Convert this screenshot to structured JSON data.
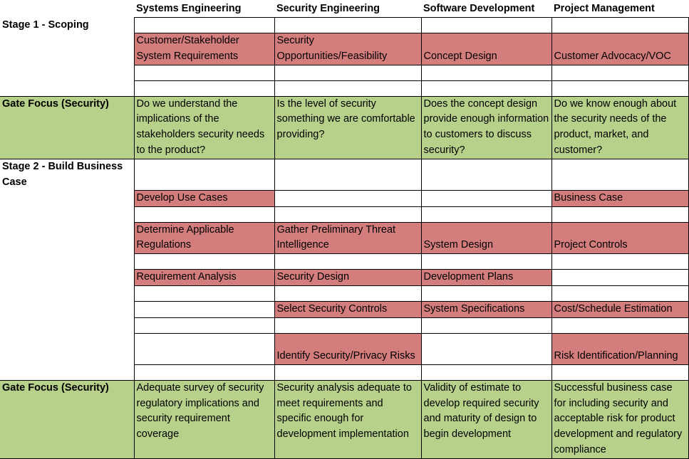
{
  "header": {
    "blank": "",
    "col1": "Systems Engineering",
    "col2": "Security Engineering",
    "col3": "Software Development",
    "col4": "Project Management"
  },
  "stage1": {
    "label": "Stage 1 - Scoping",
    "r1": [
      "Customer/Stakeholder System Requirements",
      "Security Opportunities/Feasibility",
      "Concept Design",
      "Customer Advocacy/VOC"
    ],
    "gate_label": "Gate Focus (Security)",
    "gate": [
      "Do we understand the implications of the stakeholders security needs to the product?",
      "Is the level of security something we are comfortable providing?",
      "Does the concept design provide enough information to customers to discuss security?",
      "Do we know enough about the security needs of the product, market, and customer?"
    ]
  },
  "stage2": {
    "label": "Stage 2 - Build Business Case",
    "r1": [
      "Develop Use Cases",
      "",
      "",
      "Business Case"
    ],
    "r2": [
      "Determine Applicable Regulations",
      "Gather Preliminary Threat Intelligence",
      "System Design",
      "Project Controls"
    ],
    "r3": [
      "Requirement Analysis",
      "Security Design",
      "Development Plans",
      ""
    ],
    "r4": [
      "",
      "Select Security Controls",
      "System Specifications",
      "Cost/Schedule Estimation"
    ],
    "r5": [
      "",
      "Identify Security/Privacy Risks",
      "",
      "Risk Identification/Planning"
    ],
    "gate_label": "Gate Focus (Security)",
    "gate": [
      "Adequate survey of security regulatory implications and security requirement coverage",
      "Security analysis adequate to meet requirements and specific enough for development implementation",
      "Validity of estimate to develop required security and maturity of design to begin development",
      "Successful business case for including security and acceptable risk for product development and regulatory compliance"
    ]
  },
  "colors": {
    "activity": "#d47d7d",
    "gate": "#b7d08a"
  }
}
